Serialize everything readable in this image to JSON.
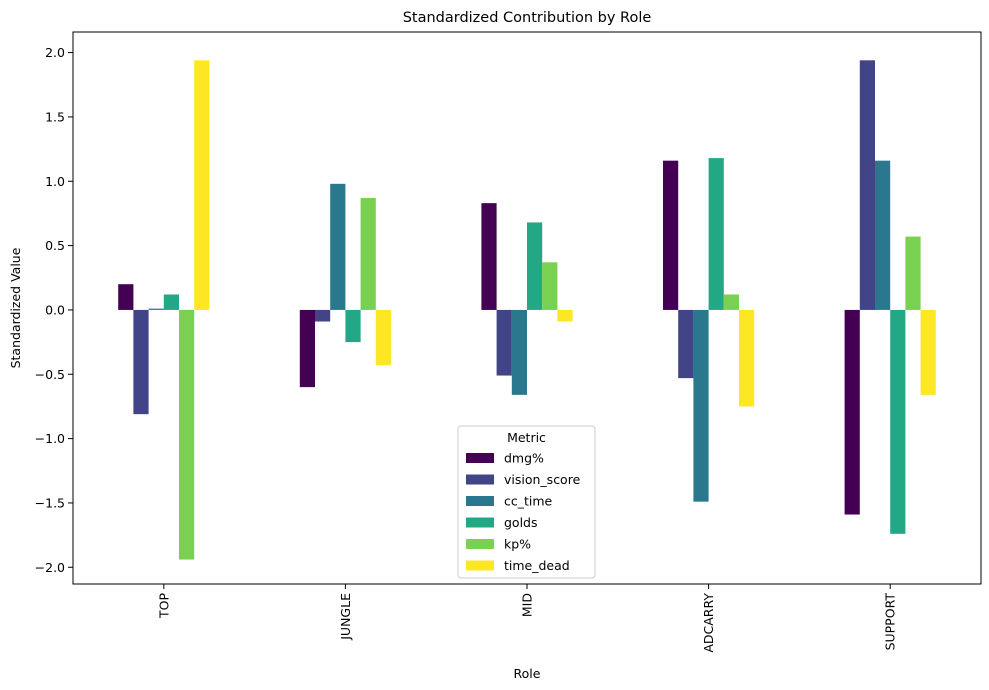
{
  "chart_data": {
    "type": "bar",
    "title": "Standardized Contribution by Role",
    "xlabel": "Role",
    "ylabel": "Standardized Value",
    "categories": [
      "TOP",
      "JUNGLE",
      "MID",
      "ADCARRY",
      "SUPPORT"
    ],
    "ylim": [
      -2.13,
      2.16
    ],
    "yticks": [
      -2.0,
      -1.5,
      -1.0,
      -0.5,
      0.0,
      0.5,
      1.0,
      1.5,
      2.0
    ],
    "ytick_labels": [
      "−2.0",
      "−1.5",
      "−1.0",
      "−0.5",
      "0.0",
      "0.5",
      "1.0",
      "1.5",
      "2.0"
    ],
    "grid": false,
    "legend": {
      "title": "Metric",
      "placement": "lower-center"
    },
    "series": [
      {
        "name": "dmg%",
        "color": "#440154",
        "values": [
          0.2,
          -0.6,
          0.83,
          1.16,
          -1.59
        ]
      },
      {
        "name": "vision_score",
        "color": "#414487",
        "values": [
          -0.81,
          -0.09,
          -0.51,
          -0.53,
          1.94
        ]
      },
      {
        "name": "cc_time",
        "color": "#2a788e",
        "values": [
          0.01,
          0.98,
          -0.66,
          -1.49,
          1.16
        ]
      },
      {
        "name": "golds",
        "color": "#22a884",
        "values": [
          0.12,
          -0.25,
          0.68,
          1.18,
          -1.74
        ]
      },
      {
        "name": "kp%",
        "color": "#7ad151",
        "values": [
          -1.94,
          0.87,
          0.37,
          0.12,
          0.57
        ]
      },
      {
        "name": "time_dead",
        "color": "#fde725",
        "values": [
          1.94,
          -0.43,
          -0.09,
          -0.75,
          -0.66
        ]
      }
    ]
  }
}
